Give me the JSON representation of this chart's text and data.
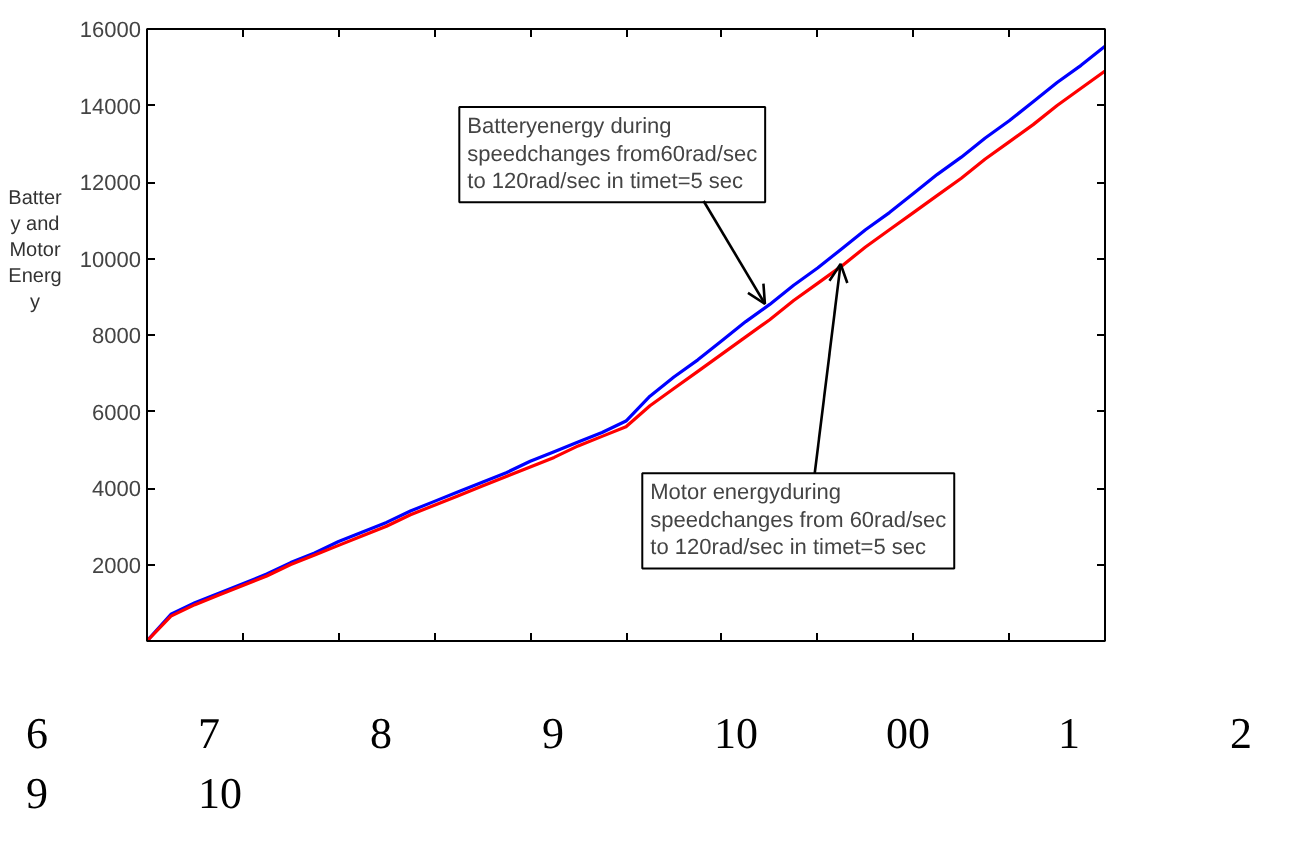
{
  "chart_data": {
    "type": "line",
    "ylabel": "Battery and Motor Energy",
    "categories": [
      null,
      null,
      null,
      null,
      null,
      null,
      null,
      null,
      null,
      null,
      null,
      null,
      null,
      null,
      null,
      null,
      null,
      null,
      null,
      null,
      null,
      null,
      null,
      null,
      null,
      null,
      null,
      null,
      null,
      null,
      null,
      null,
      null,
      null,
      null,
      null,
      null,
      null,
      null,
      null,
      null
    ],
    "ylim": [
      0,
      16000
    ],
    "yticks": [
      2000,
      4000,
      6000,
      8000,
      10000,
      12000,
      14000,
      16000
    ],
    "tick_labels": "y",
    "grid": false,
    "marker": "none",
    "line_style": "solid",
    "series": [
      {
        "color": "#0000ff",
        "values": [
          0,
          700,
          1000,
          1250,
          1500,
          1750,
          2050,
          2300,
          2600,
          2850,
          3100,
          3400,
          3650,
          3900,
          4150,
          4400,
          4700,
          4950,
          5200,
          5450,
          5750,
          6400,
          6900,
          7350,
          7850,
          8350,
          8800,
          9300,
          9750,
          10250,
          10750,
          11200,
          11700,
          12200,
          12650,
          13150,
          13600,
          14100,
          14600,
          15050,
          15550
        ]
      },
      {
        "color": "#ff0000",
        "values": [
          0,
          650,
          950,
          1200,
          1450,
          1700,
          2000,
          2250,
          2500,
          2750,
          3000,
          3300,
          3550,
          3800,
          4050,
          4300,
          4550,
          4800,
          5100,
          5350,
          5600,
          6150,
          6600,
          7050,
          7500,
          7950,
          8400,
          8900,
          9350,
          9800,
          10300,
          10750,
          11200,
          11650,
          12100,
          12600,
          13050,
          13500,
          14000,
          14450,
          14900
        ]
      }
    ],
    "annotations": [
      "Batteryenergy during\nspeedchanges from60rad/sec\nto 120rad/sec in timet=5 sec",
      "Motor energyduring\nspeedchanges from 60rad/sec\nto 120rad/sec in timet=5 sec",
      "6 7 8 9 10 00 1 2",
      "9 10"
    ]
  }
}
